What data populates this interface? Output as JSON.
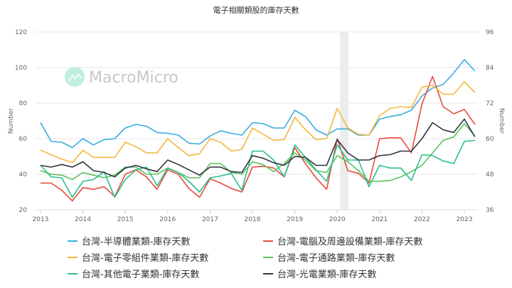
{
  "title": "電子相關類股的庫存天數",
  "watermark": "MacroMicro",
  "chart_data": {
    "type": "line",
    "title": "電子相關類股的庫存天數",
    "xlabel": "",
    "ylabel": "Number",
    "ylabel_right": "Number",
    "ylim": [
      20,
      120
    ],
    "ylim_right": [
      36,
      96
    ],
    "yticks": [
      20,
      40,
      60,
      80,
      100,
      120
    ],
    "yticks_right": [
      36,
      48,
      60,
      72,
      84,
      96
    ],
    "xticks": [
      "2013",
      "2014",
      "2015",
      "2016",
      "2017",
      "2018",
      "2019",
      "2020",
      "2021",
      "2022",
      "2023"
    ],
    "grid": true,
    "legend_position": "bottom",
    "shaded_region": {
      "start": "2020Q1",
      "end": "2020Q2"
    },
    "x": [
      "2013Q1",
      "2013Q2",
      "2013Q3",
      "2013Q4",
      "2014Q1",
      "2014Q2",
      "2014Q3",
      "2014Q4",
      "2015Q1",
      "2015Q2",
      "2015Q3",
      "2015Q4",
      "2016Q1",
      "2016Q2",
      "2016Q3",
      "2016Q4",
      "2017Q1",
      "2017Q2",
      "2017Q3",
      "2017Q4",
      "2018Q1",
      "2018Q2",
      "2018Q3",
      "2018Q4",
      "2019Q1",
      "2019Q2",
      "2019Q3",
      "2019Q4",
      "2020Q1",
      "2020Q2",
      "2020Q3",
      "2020Q4",
      "2021Q1",
      "2021Q2",
      "2021Q3",
      "2021Q4",
      "2022Q1",
      "2022Q2",
      "2022Q3",
      "2022Q4",
      "2023Q1",
      "2023Q2"
    ],
    "series": [
      {
        "name": "台灣-半導體業類-庫存天數",
        "color": "#3aaee0",
        "values": [
          69,
          58.5,
          58,
          55,
          60,
          56.5,
          59.5,
          60,
          66,
          68,
          67,
          63.5,
          63,
          62,
          57.5,
          57,
          61.5,
          64.5,
          63,
          62,
          69,
          68.5,
          66,
          66,
          76,
          72.5,
          65,
          62,
          65.5,
          65.5,
          62,
          62,
          71,
          72.5,
          73.5,
          76,
          84,
          88.5,
          90.5,
          97,
          104.5,
          98
        ]
      },
      {
        "name": "台灣-電腦及周邊設備業類-庫存天數",
        "color": "#e74c3c",
        "values": [
          35,
          35,
          31,
          25,
          32.5,
          31.5,
          33,
          27.5,
          40,
          42.5,
          38.5,
          31.5,
          42.5,
          40,
          32,
          27,
          37.5,
          35,
          32,
          30,
          44,
          44.5,
          43.5,
          38.5,
          55,
          46,
          38,
          31.5,
          60,
          42,
          40.5,
          35,
          60,
          60.5,
          60.5,
          52,
          79.5,
          95,
          78,
          74,
          76.5,
          68
        ]
      },
      {
        "name": "台灣-電子零組件業類-庫存天數",
        "color": "#f6b73c",
        "values": [
          53.5,
          51,
          48.5,
          46.5,
          53.5,
          49.5,
          49.5,
          49.5,
          58,
          55.5,
          52,
          52,
          60,
          55,
          50.5,
          51.5,
          60,
          58,
          53,
          54,
          66,
          62.5,
          59,
          59.5,
          72,
          65,
          59.5,
          60,
          77,
          66,
          62.5,
          62,
          73,
          77,
          78,
          77.5,
          89,
          90,
          85,
          85,
          92,
          86
        ]
      },
      {
        "name": "台灣-電子通路業類-庫存天數",
        "color": "#5cc15c",
        "values": [
          42,
          40,
          39.5,
          37,
          41,
          39.5,
          38,
          39.5,
          44,
          44,
          40,
          40,
          43.5,
          41,
          38,
          38,
          46,
          46,
          41,
          40,
          47,
          45.5,
          41.5,
          46,
          52,
          48,
          42,
          41,
          50.5,
          47,
          42,
          36,
          36,
          36.5,
          38.5,
          41.5,
          45,
          52,
          59,
          61,
          68.5,
          61.5
        ]
      },
      {
        "name": "台灣-其他電子業類-庫存天數",
        "color": "#2cbf8f",
        "values": [
          45,
          38.5,
          38,
          27,
          36,
          37,
          41.5,
          27,
          37,
          42.5,
          44,
          33.5,
          43.5,
          41,
          36,
          30,
          38,
          39,
          40.5,
          31,
          53,
          53,
          48,
          38.5,
          56.5,
          49.5,
          42.5,
          36,
          56.5,
          48,
          48,
          33,
          45,
          43.5,
          43.5,
          36.5,
          51,
          50.5,
          47.5,
          46,
          58.5,
          59
        ]
      },
      {
        "name": "台灣-光電業類-庫存天數",
        "color": "#2e3440",
        "values": [
          45,
          44,
          45.5,
          44,
          47,
          42,
          41,
          38.5,
          43.5,
          45,
          43,
          41.5,
          48,
          45.5,
          42.5,
          39.5,
          44,
          44,
          41.5,
          41,
          50.5,
          49,
          46.5,
          45,
          50,
          49.5,
          45,
          45,
          59.5,
          52,
          48,
          48,
          50.5,
          51,
          53,
          53,
          60,
          69,
          65,
          63.5,
          71,
          61
        ]
      }
    ]
  }
}
